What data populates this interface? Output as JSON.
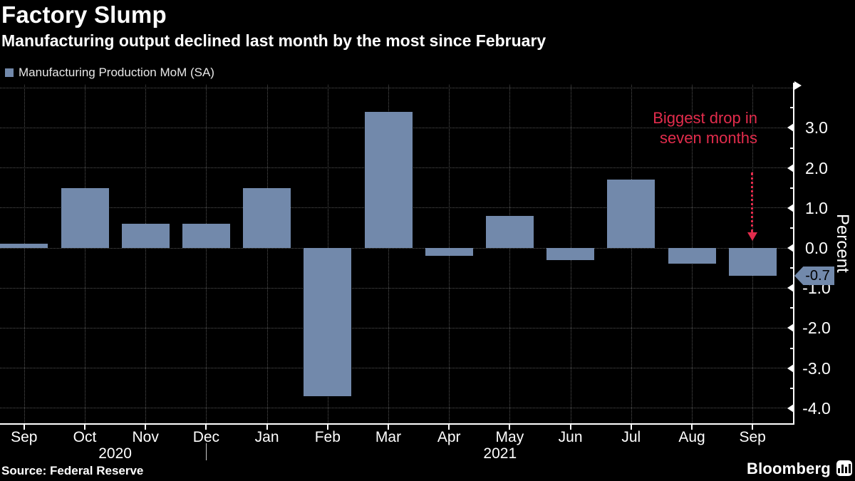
{
  "header": {
    "title": "Factory Slump",
    "subtitle": "Manufacturing output declined last month by the most since February"
  },
  "legend": {
    "label": "Manufacturing Production MoM (SA)"
  },
  "chart_data": {
    "type": "bar",
    "title": "Factory Slump",
    "subtitle": "Manufacturing output declined last month by the most since February",
    "categories": [
      "Sep",
      "Oct",
      "Nov",
      "Dec",
      "Jan",
      "Feb",
      "Mar",
      "Apr",
      "May",
      "Jun",
      "Jul",
      "Aug",
      "Sep"
    ],
    "series": [
      {
        "name": "Manufacturing Production MoM (SA)",
        "values": [
          0.1,
          1.5,
          0.6,
          0.6,
          1.5,
          -3.7,
          3.4,
          -0.2,
          0.8,
          -0.3,
          1.7,
          -0.4,
          -0.7
        ]
      }
    ],
    "year_labels": [
      {
        "label": "2020",
        "x_month": 1.5
      },
      {
        "label": "2021",
        "x_month": 7.84
      }
    ],
    "year_divider_month_index": 3,
    "ylabel": "Percent",
    "ylim": [
      -4.4,
      4.15
    ],
    "ytick_values": [
      3,
      2,
      1,
      0,
      -1,
      -2,
      -3,
      -4
    ],
    "ytick_labels": [
      "3.0",
      "2.0",
      "1.0",
      "0.0",
      "-1.0",
      "-2.0",
      "-3.0",
      "-4.0"
    ],
    "grid_values": [
      4,
      3,
      2,
      1,
      0,
      -1,
      -2,
      -3,
      -4
    ],
    "minor_tick_values": [
      3.5,
      2.5,
      1.5,
      0.5,
      -0.5,
      -1.5,
      -2.5,
      -3.5
    ],
    "grid": "dotted",
    "legend_position": "top-left",
    "background_color": "#000000",
    "bar_color": "#7289ab",
    "annotation": {
      "line1": "Biggest drop in",
      "line2": "seven months",
      "color": "#e22c4c",
      "arrow_month_index": 12
    },
    "last_point_label": "-0.7"
  },
  "footer": {
    "source": "Source: Federal Reserve",
    "brand": "Bloomberg"
  }
}
